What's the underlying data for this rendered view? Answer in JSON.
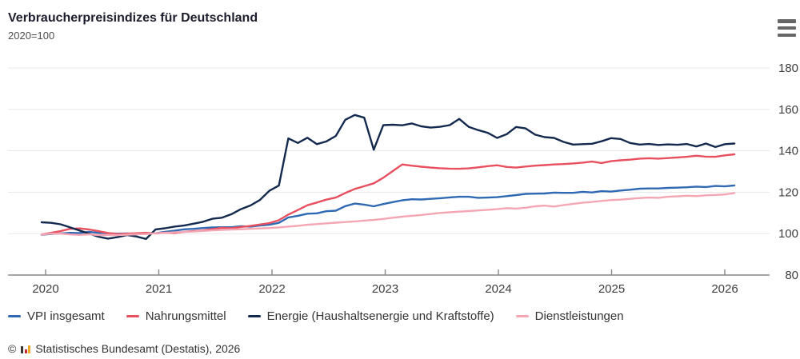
{
  "header": {
    "title": "Verbraucherpreisindizes für Deutschland",
    "subtitle": "2020=100",
    "menu_icon": "hamburger-icon"
  },
  "footer": {
    "copyright": "©",
    "source": "Statistisches Bundesamt (Destatis), 2026",
    "logo_colors": [
      "#3a3632",
      "#cc2a2a",
      "#f0a922"
    ]
  },
  "chart_data": {
    "type": "line",
    "title": "Verbraucherpreisindizes für Deutschland",
    "subtitle": "2020=100",
    "x_start": "2020-01",
    "x_interval": "monthly",
    "x_tick_labels": [
      "2020",
      "2021",
      "2022",
      "2023",
      "2024",
      "2025",
      "2026"
    ],
    "y_ticks": [
      80,
      100,
      120,
      140,
      160,
      180
    ],
    "ylim": [
      80,
      180
    ],
    "y_axis_side": "right",
    "grid": true,
    "legend_position": "bottom",
    "axis_color": "#888888",
    "grid_color": "#e7e7e7",
    "tick_label_color": "#3d3d3d",
    "series": [
      {
        "name": "VPI insgesamt",
        "color": "#3069b3",
        "values": [
          99.5,
          99.9,
          100.1,
          100.4,
          100.3,
          100.9,
          100.4,
          100.2,
          100.0,
          100.1,
          99.7,
          100.2,
          100.2,
          100.9,
          101.4,
          102.1,
          102.3,
          102.7,
          103.0,
          103.1,
          103.1,
          103.6,
          103.4,
          103.9,
          104.3,
          105.2,
          107.8,
          108.6,
          109.6,
          109.8,
          110.8,
          111.1,
          113.3,
          114.5,
          114.0,
          113.2,
          114.3,
          115.2,
          116.1,
          116.6,
          116.5,
          116.8,
          117.1,
          117.5,
          117.8,
          117.8,
          117.3,
          117.4,
          117.6,
          118.1,
          118.6,
          119.2,
          119.3,
          119.4,
          119.8,
          119.7,
          119.7,
          120.2,
          119.9,
          120.5,
          120.3,
          120.8,
          121.2,
          121.7,
          121.8,
          121.8,
          122.1,
          122.2,
          122.4,
          122.7,
          122.5,
          123.0,
          122.8,
          123.3
        ]
      },
      {
        "name": "Nahrungsmittel",
        "color": "#e8505f",
        "values": [
          99.6,
          100.4,
          101.2,
          102.3,
          102.5,
          102.0,
          101.2,
          100.3,
          99.8,
          100.0,
          100.2,
          100.4,
          100.1,
          100.5,
          100.3,
          100.9,
          101.2,
          101.5,
          102.2,
          102.8,
          102.6,
          103.2,
          103.7,
          104.4,
          105.1,
          106.5,
          109.2,
          111.4,
          113.7,
          115.0,
          116.4,
          117.4,
          119.6,
          121.6,
          122.9,
          124.3,
          127.0,
          130.2,
          133.4,
          132.8,
          132.3,
          131.9,
          131.6,
          131.4,
          131.3,
          131.5,
          132.0,
          132.6,
          133.0,
          132.2,
          131.9,
          132.4,
          132.8,
          133.1,
          133.4,
          133.6,
          133.9,
          134.3,
          134.8,
          134.1,
          135.0,
          135.4,
          135.7,
          136.2,
          136.4,
          136.2,
          136.5,
          136.8,
          137.1,
          137.6,
          137.2,
          137.1,
          137.8,
          138.3
        ]
      },
      {
        "name": "Energie (Haushaltsenergie und Kraftstoffe)",
        "color": "#14294e",
        "values": [
          105.5,
          105.2,
          104.5,
          103.0,
          101.5,
          100.0,
          98.5,
          97.6,
          98.3,
          99.3,
          98.6,
          97.4,
          102.0,
          102.6,
          103.4,
          103.9,
          104.8,
          105.7,
          107.2,
          107.7,
          109.4,
          111.8,
          113.6,
          116.2,
          120.7,
          123.2,
          146.0,
          143.8,
          146.3,
          143.2,
          144.5,
          147.2,
          155.0,
          157.3,
          156.0,
          140.5,
          152.4,
          152.6,
          152.3,
          153.2,
          151.8,
          151.2,
          151.6,
          152.4,
          155.4,
          151.6,
          150.0,
          148.7,
          146.2,
          148.0,
          151.5,
          150.8,
          147.8,
          146.6,
          146.2,
          144.3,
          143.0,
          143.2,
          143.4,
          144.6,
          146.1,
          145.7,
          143.8,
          143.0,
          143.3,
          142.8,
          143.1,
          142.9,
          143.3,
          142.1,
          143.5,
          141.8,
          143.2,
          143.5
        ]
      },
      {
        "name": "Dienstleistungen",
        "color": "#f4a6b4",
        "values": [
          99.6,
          100.0,
          100.0,
          99.6,
          99.4,
          99.7,
          99.3,
          99.4,
          99.3,
          99.5,
          99.7,
          99.8,
          100.2,
          100.4,
          100.6,
          100.8,
          101.0,
          101.3,
          101.6,
          101.8,
          102.0,
          102.1,
          102.3,
          102.5,
          102.7,
          103.0,
          103.4,
          103.8,
          104.3,
          104.6,
          105.0,
          105.3,
          105.6,
          105.9,
          106.3,
          106.6,
          107.1,
          107.7,
          108.2,
          108.6,
          109.0,
          109.5,
          110.0,
          110.3,
          110.6,
          110.9,
          111.2,
          111.5,
          111.8,
          112.3,
          112.1,
          112.5,
          113.2,
          113.5,
          113.1,
          113.8,
          114.4,
          114.9,
          115.3,
          115.8,
          116.2,
          116.4,
          116.8,
          117.2,
          117.4,
          117.3,
          117.8,
          118.0,
          118.3,
          118.1,
          118.5,
          118.7,
          118.9,
          119.6
        ]
      }
    ]
  }
}
